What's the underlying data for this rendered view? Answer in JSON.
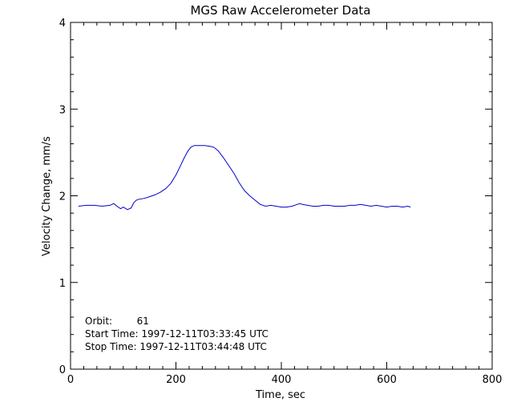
{
  "chart_data": {
    "type": "line",
    "title": "MGS Raw Accelerometer Data",
    "xlabel": "Time, sec",
    "ylabel": "Velocity Change, mm/s",
    "xlim": [
      0,
      800
    ],
    "ylim": [
      0,
      4
    ],
    "x_ticks": [
      "0",
      "200",
      "400",
      "600",
      "800"
    ],
    "y_ticks": [
      "0",
      "1",
      "2",
      "3",
      "4"
    ],
    "grid": false,
    "line_color": "#0000cc",
    "annotations": [
      "Orbit:        61",
      "Start Time: 1997-12-11T03:33:45 UTC",
      "Stop Time: 1997-12-11T03:44:48 UTC"
    ],
    "series": [
      {
        "x": [
          15,
          30,
          45,
          60,
          75,
          82,
          88,
          95,
          100,
          108,
          115,
          120,
          125,
          130,
          140,
          150,
          160,
          170,
          180,
          190,
          200,
          208,
          215,
          222,
          228,
          235,
          245,
          255,
          265,
          272,
          280,
          290,
          300,
          310,
          320,
          330,
          340,
          350,
          360,
          370,
          380,
          390,
          400,
          410,
          420,
          430,
          435,
          440,
          450,
          460,
          470,
          480,
          490,
          500,
          510,
          520,
          530,
          540,
          550,
          560,
          570,
          580,
          590,
          600,
          610,
          620,
          630,
          640,
          645
        ],
        "y": [
          1.88,
          1.89,
          1.89,
          1.88,
          1.89,
          1.91,
          1.88,
          1.85,
          1.87,
          1.84,
          1.86,
          1.92,
          1.95,
          1.96,
          1.97,
          1.99,
          2.01,
          2.04,
          2.08,
          2.14,
          2.24,
          2.34,
          2.43,
          2.51,
          2.56,
          2.58,
          2.58,
          2.58,
          2.57,
          2.56,
          2.52,
          2.44,
          2.35,
          2.26,
          2.15,
          2.06,
          2.0,
          1.95,
          1.9,
          1.88,
          1.89,
          1.88,
          1.87,
          1.87,
          1.88,
          1.9,
          1.91,
          1.9,
          1.89,
          1.88,
          1.88,
          1.89,
          1.89,
          1.88,
          1.88,
          1.88,
          1.89,
          1.89,
          1.9,
          1.89,
          1.88,
          1.89,
          1.88,
          1.87,
          1.88,
          1.88,
          1.87,
          1.88,
          1.87
        ]
      }
    ]
  }
}
